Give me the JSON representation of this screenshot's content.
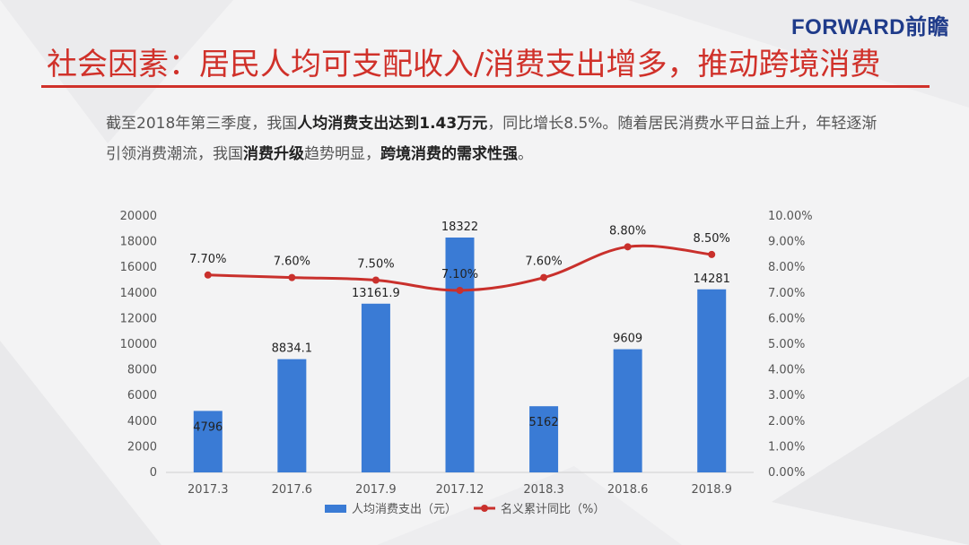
{
  "brand": "FORWARD前瞻",
  "title": "社会因素：居民人均可支配收入/消费支出增多，推动跨境消费",
  "description": {
    "p1": "截至2018年第三季度，我国",
    "b1": "人均消费支出达到1.43万元",
    "p2": "，同比增长8.5%。随着居民消费水平日益上升，年轻逐渐引领消费潮流，我国",
    "b2": "消费升级",
    "p3": "趋势明显，",
    "b3": "跨境消费的需求性强",
    "p4": "。"
  },
  "colors": {
    "bar": "#3a7bd5",
    "line": "#c9302c",
    "title": "#d0312a"
  },
  "chart_data": {
    "type": "bar",
    "categories": [
      "2017.3",
      "2017.6",
      "2017.9",
      "2017.12",
      "2018.3",
      "2018.6",
      "2018.9"
    ],
    "series": [
      {
        "name": "人均消费支出（元）",
        "type": "bar",
        "axis": "left",
        "values": [
          4796,
          8834.1,
          13161.9,
          18322,
          5162,
          9609,
          14281
        ],
        "labels": [
          "4796",
          "8834.1",
          "13161.9",
          "18322",
          "5162",
          "9609",
          "14281"
        ]
      },
      {
        "name": "名义累计同比（%）",
        "type": "line",
        "axis": "right",
        "values": [
          7.7,
          7.6,
          7.5,
          7.1,
          7.6,
          8.8,
          8.5
        ],
        "labels": [
          "7.70%",
          "7.60%",
          "7.50%",
          "7.10%",
          "7.60%",
          "8.80%",
          "8.50%"
        ]
      }
    ],
    "y_left": {
      "min": 0,
      "max": 20000,
      "ticks": [
        "0",
        "2000",
        "4000",
        "6000",
        "8000",
        "10000",
        "12000",
        "14000",
        "16000",
        "18000",
        "20000"
      ]
    },
    "y_right": {
      "min": 0,
      "max": 10,
      "ticks": [
        "0.00%",
        "1.00%",
        "2.00%",
        "3.00%",
        "4.00%",
        "5.00%",
        "6.00%",
        "7.00%",
        "8.00%",
        "9.00%",
        "10.00%"
      ]
    },
    "grid": false,
    "legend": "bottom"
  }
}
